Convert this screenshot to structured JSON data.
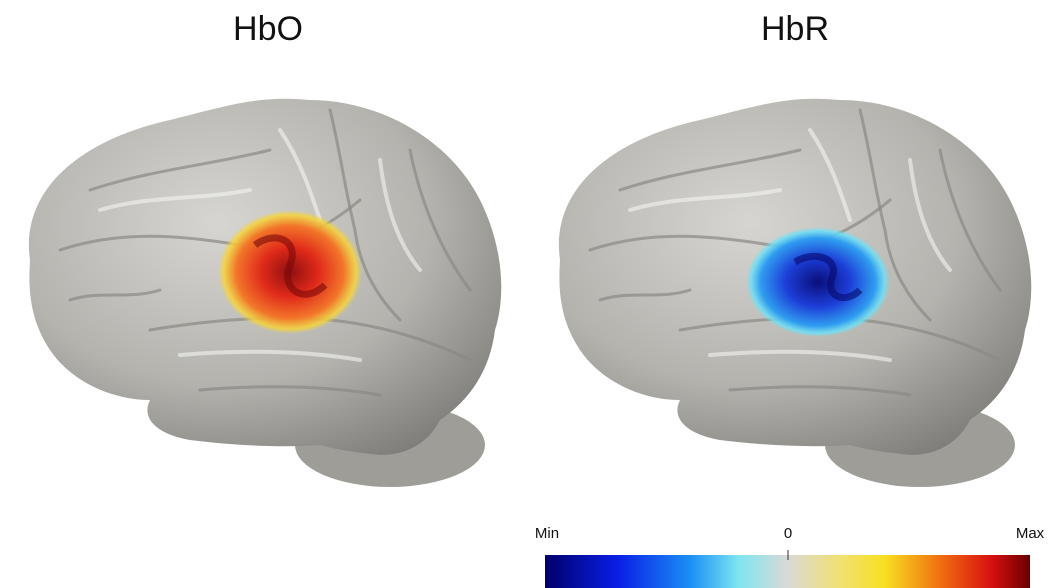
{
  "panels": [
    {
      "title": "HbO"
    },
    {
      "title": "HbR"
    }
  ],
  "colorbar": {
    "min_label": "Min",
    "mid_label": "0",
    "max_label": "Max"
  }
}
